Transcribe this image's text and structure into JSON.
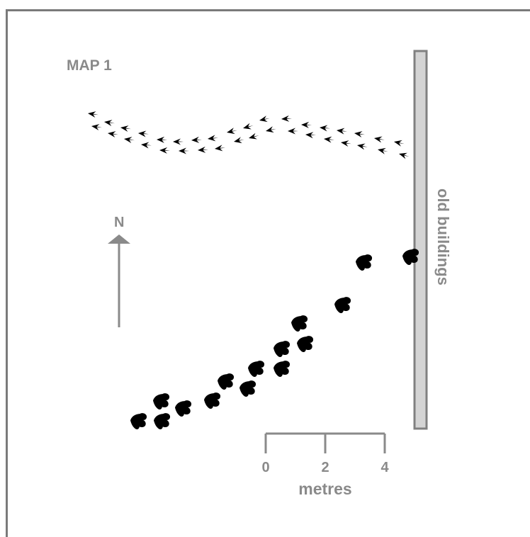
{
  "map": {
    "title": "MAP 1",
    "north_label": "N",
    "wall_label": "old buildings",
    "scale": {
      "ticks": [
        "0",
        "2",
        "4"
      ],
      "unit": "metres"
    },
    "colors": {
      "ink": "#000000",
      "label_gray": "#8a8a8a",
      "frame_gray": "#7a7a7a",
      "wall_fill": "#d4d4d4",
      "wall_stroke": "#808080"
    },
    "icons": {
      "small_track": "bird-footprint-icon",
      "large_track": "dinosaur-footprint-icon",
      "north_arrow": "north-arrow-icon"
    }
  }
}
